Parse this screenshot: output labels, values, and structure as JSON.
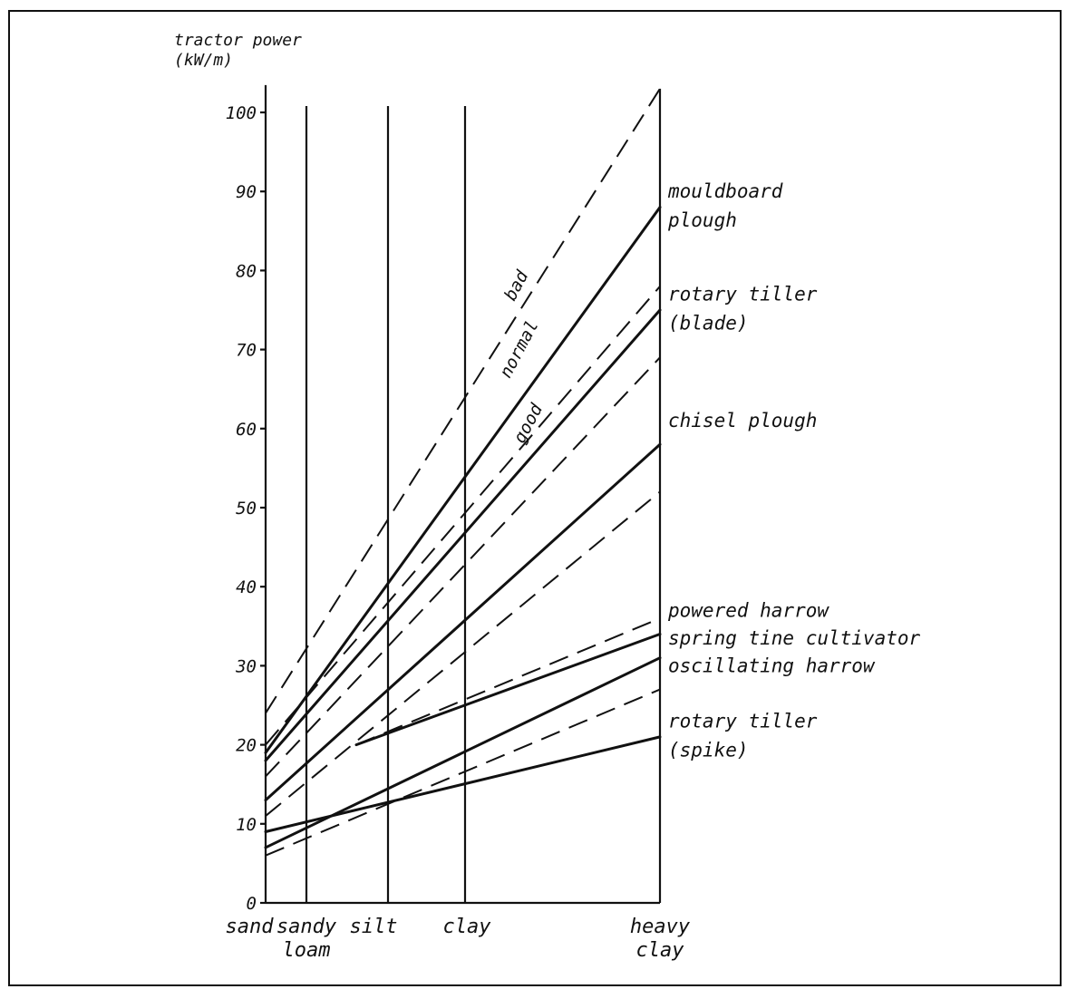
{
  "chart_data": {
    "type": "line",
    "title": "",
    "ylabel": [
      "tractor power",
      "(kW/m)"
    ],
    "ylim": [
      0,
      103
    ],
    "yticks": [
      0,
      10,
      20,
      30,
      40,
      50,
      60,
      70,
      80,
      90,
      100
    ],
    "x_positions": [
      0,
      0.45,
      1.35,
      2.2,
      4.35
    ],
    "soil_types": [
      {
        "label": [
          "sand"
        ],
        "x": 0
      },
      {
        "label": [
          "sandy",
          "loam"
        ],
        "x": 0.45
      },
      {
        "label": [
          "silt"
        ],
        "x": 1.35
      },
      {
        "label": [
          "clay"
        ],
        "x": 2.2
      },
      {
        "label": [
          "heavy",
          "clay"
        ],
        "x": 4.35
      }
    ],
    "quality_labels": [
      "bad",
      "normal",
      "good"
    ],
    "series": [
      {
        "implement": "mouldboard plough",
        "condition": "bad",
        "style": "dashed",
        "start": 24,
        "end": 103
      },
      {
        "implement": "mouldboard plough",
        "condition": "normal",
        "style": "solid",
        "start": 19,
        "end": 88
      },
      {
        "implement": "rotary tiller (blade)",
        "condition": "bad",
        "style": "dashed",
        "start": 20,
        "end": 78
      },
      {
        "implement": "rotary tiller (blade)",
        "condition": "normal",
        "style": "solid",
        "start": 18,
        "end": 75
      },
      {
        "implement": "rotary tiller (blade)",
        "condition": "good",
        "style": "dashed",
        "start": 16,
        "end": 69
      },
      {
        "implement": "chisel plough",
        "condition": "normal",
        "style": "solid",
        "start": 13,
        "end": 58
      },
      {
        "implement": "chisel plough",
        "condition": "good",
        "style": "dashed",
        "start": 11,
        "end": 52
      },
      {
        "implement": "powered harrow",
        "condition": "bad",
        "style": "dashed",
        "start_x": 1,
        "start": 20,
        "end": 36
      },
      {
        "implement": "spring tine cultivator",
        "condition": "normal",
        "style": "solid",
        "start_x": 1,
        "start": 20,
        "end": 34
      },
      {
        "implement": "oscillating harrow",
        "condition": "normal",
        "style": "solid",
        "start": 7,
        "end": 31
      },
      {
        "implement": "oscillating harrow",
        "condition": "good",
        "style": "dashed",
        "start": 6,
        "end": 27
      },
      {
        "implement": "rotary tiller (spike)",
        "condition": "normal",
        "style": "solid",
        "start": 9,
        "end": 21
      }
    ],
    "right_labels": [
      {
        "lines": [
          "mouldboard",
          "plough"
        ],
        "y": 90
      },
      {
        "lines": [
          "rotary tiller",
          "(blade)"
        ],
        "y": 77
      },
      {
        "lines": [
          "chisel plough"
        ],
        "y": 61
      },
      {
        "lines": [
          "powered harrow"
        ],
        "y": 37
      },
      {
        "lines": [
          "spring tine cultivator"
        ],
        "y": 33.5
      },
      {
        "lines": [
          "oscillating harrow"
        ],
        "y": 30
      },
      {
        "lines": [
          "rotary tiller",
          "(spike)"
        ],
        "y": 23
      }
    ]
  }
}
